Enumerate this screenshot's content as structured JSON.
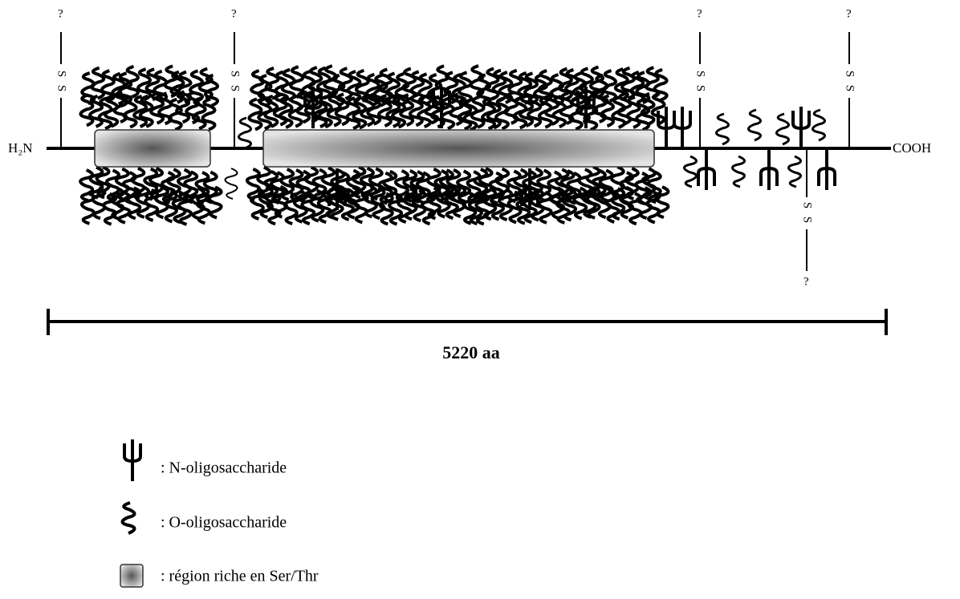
{
  "termini": {
    "n": "H₂N",
    "c": "COOH"
  },
  "bridges": [
    {
      "question": "?",
      "s1": "S",
      "s2": "S"
    },
    {
      "question": "?",
      "s1": "S",
      "s2": "S"
    },
    {
      "question": "?",
      "s1": "S",
      "s2": "S"
    },
    {
      "question": "?",
      "s1": "S",
      "s2": "S"
    },
    {
      "question": "?",
      "s1": "S",
      "s2": "S"
    }
  ],
  "scale": {
    "label": "5220 aa"
  },
  "legend": [
    {
      "label": ": N-oligosaccharide"
    },
    {
      "label": ": O-oligosaccharide"
    },
    {
      "label": ": région riche en Ser/Thr"
    }
  ]
}
